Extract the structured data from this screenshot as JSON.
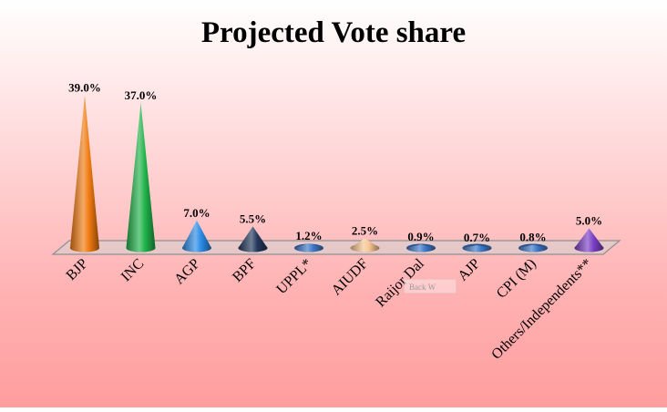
{
  "chart_data": {
    "type": "bar",
    "title": "Projected Vote share",
    "categories": [
      "BJP",
      "INC",
      "AGP",
      "BPF",
      "UPPL*",
      "AIUDF",
      "Raijor Dal",
      "AJP",
      "CPI (M)",
      "Others/Independents**"
    ],
    "values": [
      39.0,
      37.0,
      7.0,
      5.5,
      1.2,
      2.5,
      0.9,
      0.7,
      0.8,
      5.0
    ],
    "value_labels": [
      "39.0%",
      "37.0%",
      "7.0%",
      "5.5%",
      "1.2%",
      "2.5%",
      "0.9%",
      "0.7%",
      "0.8%",
      "5.0%"
    ],
    "colors": [
      "#f07a10",
      "#1fb24a",
      "#2a8ae6",
      "#22385c",
      "#3d77c6",
      "#f6c592",
      "#3d77c6",
      "#3d77c6",
      "#3d77c6",
      "#7b3fc4"
    ],
    "bar_shape": "cone",
    "legend": "none",
    "grid": false,
    "ylim": [
      0,
      40
    ]
  },
  "watermark_text": "Back W"
}
